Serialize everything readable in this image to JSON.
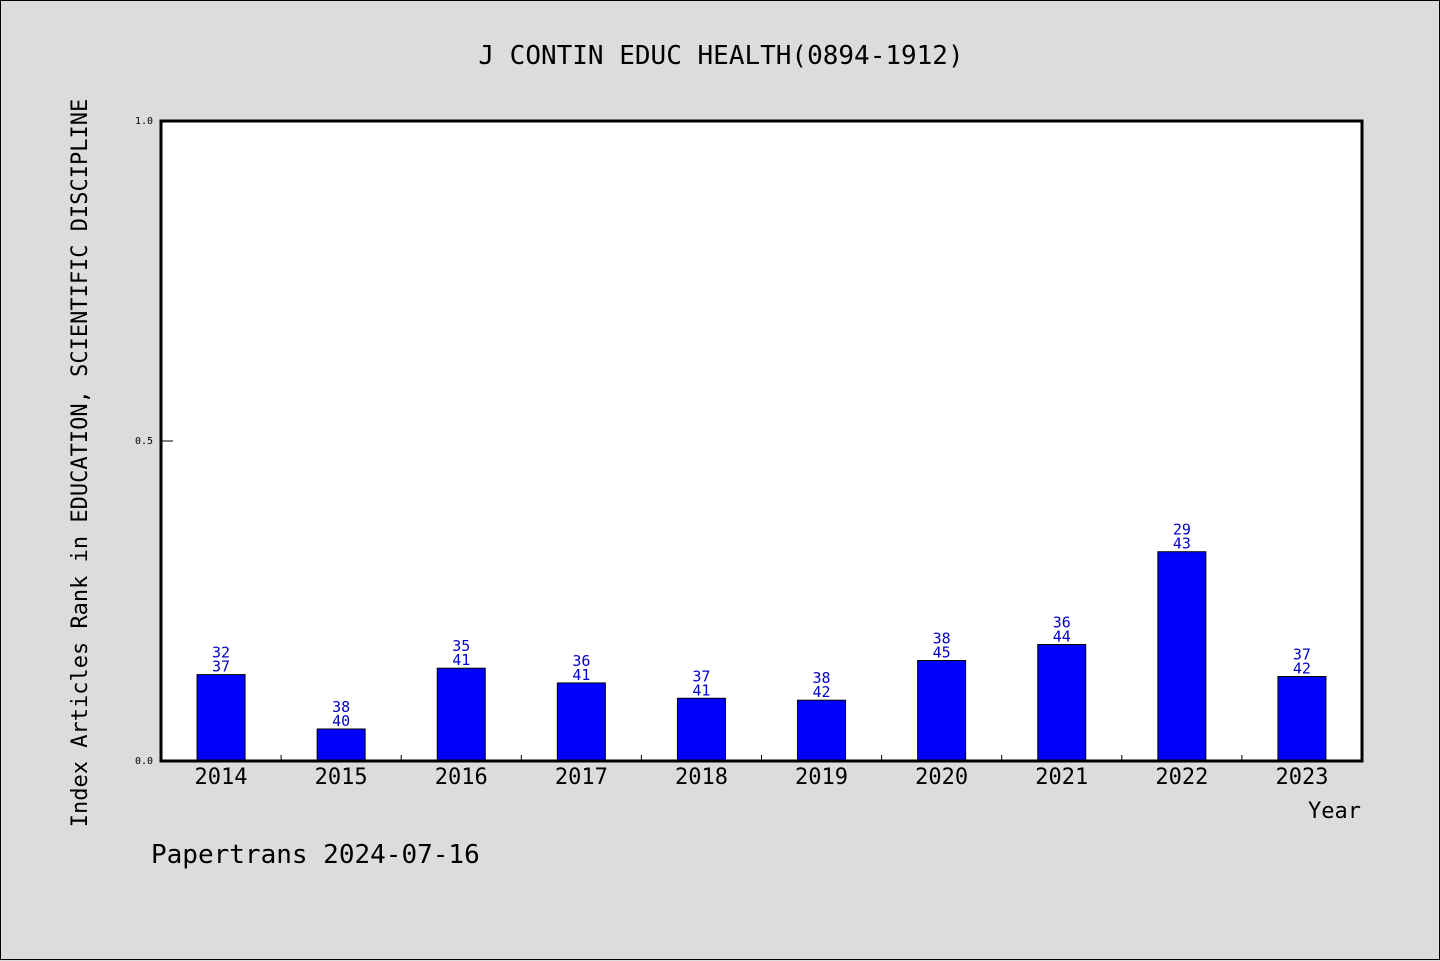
{
  "chart_data": {
    "type": "bar",
    "title": "J CONTIN EDUC HEALTH(0894-1912)",
    "xlabel": "Year",
    "ylabel": "Index Articles Rank in EDUCATION, SCIENTIFIC DISCIPLINE",
    "ylim": [
      0,
      1.0
    ],
    "yticks": [
      "0.0",
      "0.5",
      "1.0"
    ],
    "categories": [
      "2014",
      "2015",
      "2016",
      "2017",
      "2018",
      "2019",
      "2020",
      "2021",
      "2022",
      "2023"
    ],
    "values": [
      0.135,
      0.05,
      0.145,
      0.122,
      0.098,
      0.095,
      0.157,
      0.182,
      0.327,
      0.132
    ],
    "rank": [
      "32",
      "38",
      "35",
      "36",
      "37",
      "38",
      "38",
      "36",
      "29",
      "37"
    ],
    "total": [
      "37",
      "40",
      "41",
      "41",
      "41",
      "42",
      "45",
      "44",
      "43",
      "42"
    ],
    "bar_color": "#0000ff",
    "label_color": "#0000cc",
    "grid": false
  },
  "footer": "Papertrans 2024-07-16"
}
